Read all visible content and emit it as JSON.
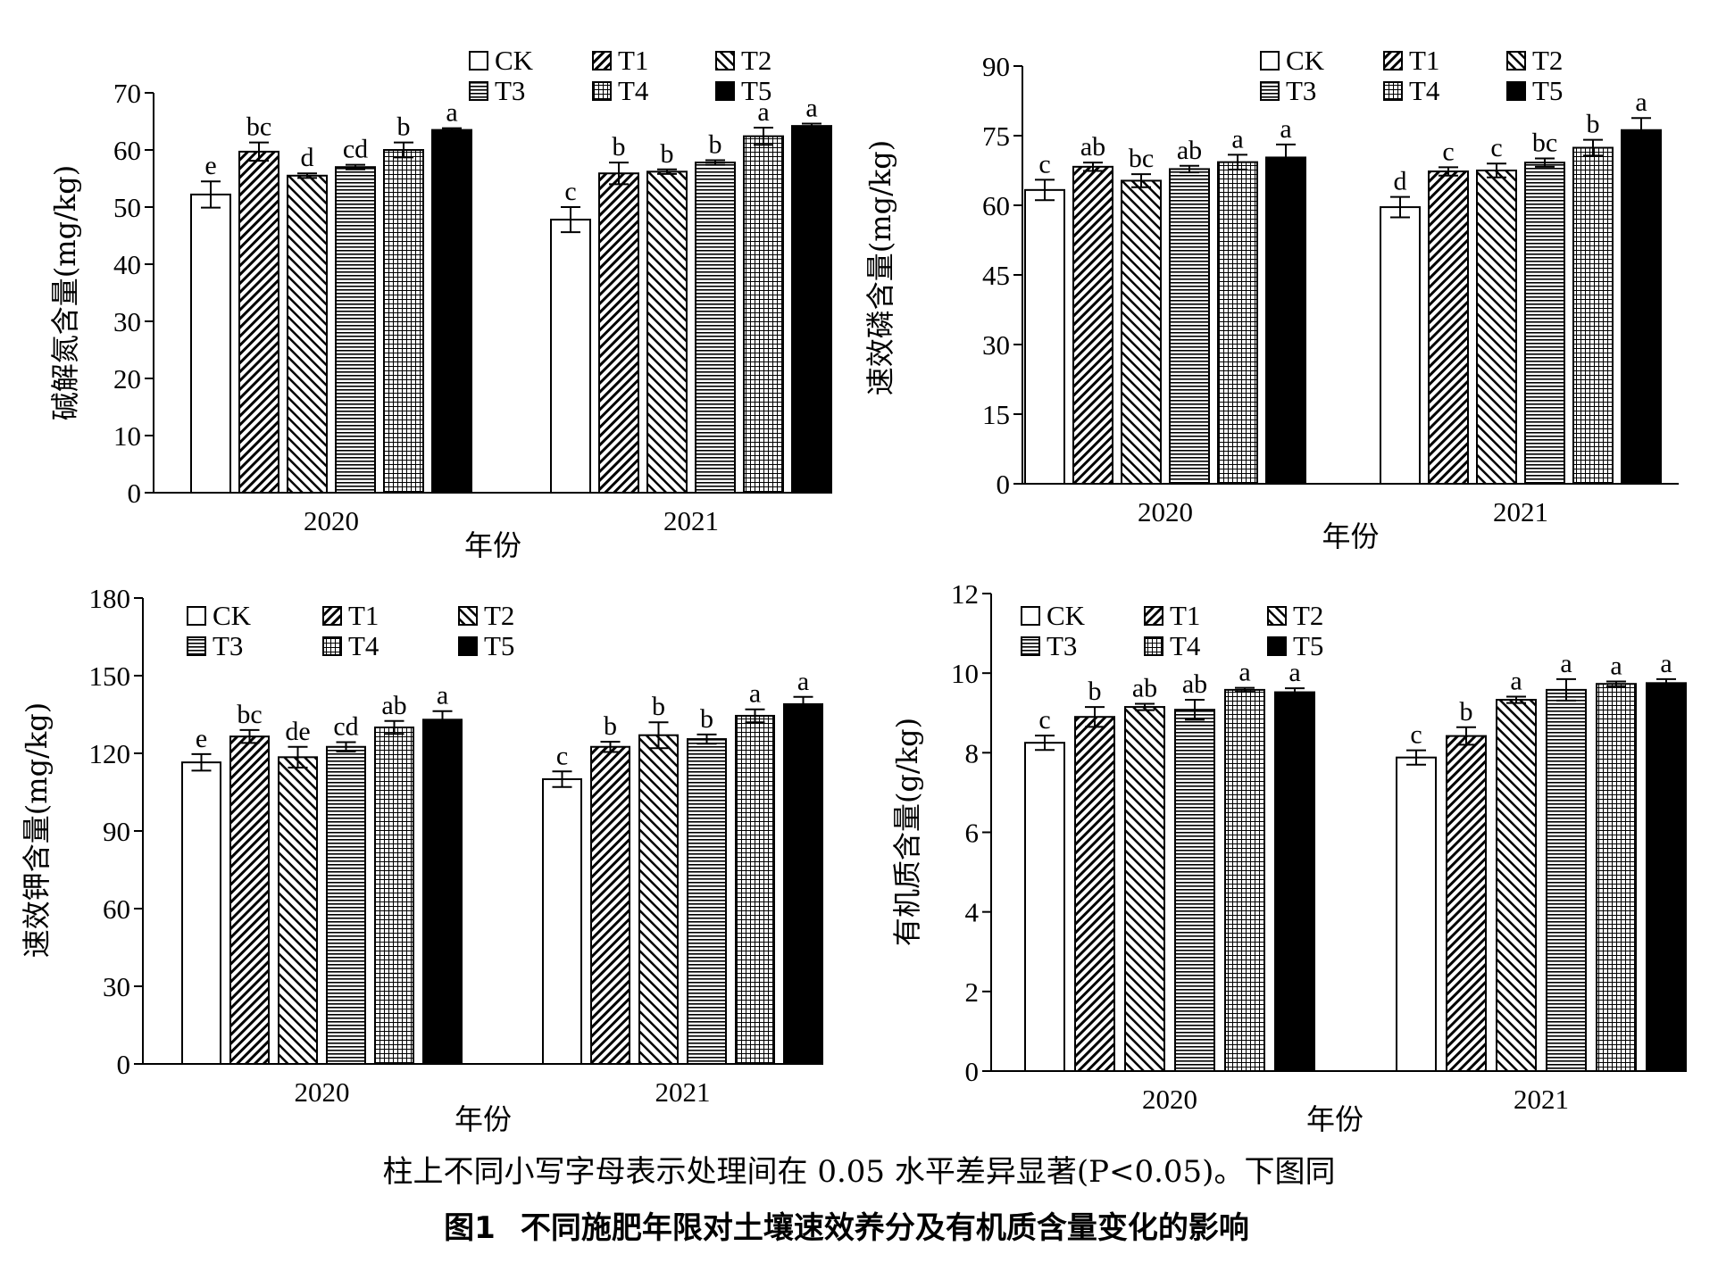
{
  "colors": {
    "ink": "#000000",
    "background": "#ffffff"
  },
  "patterns": {
    "CK": "empty",
    "T1": "backward-diagonal-dense",
    "T2": "forward-diagonal",
    "T3": "horizontal-lines",
    "T4": "grid",
    "T5": "solid"
  },
  "figure": {
    "note": "柱上不同小写字母表示处理间在 0.05 水平差异显著(P<0.05)。下图同",
    "caption_label": "图1",
    "caption_text": "不同施肥年限对土壤速效养分及有机质含量变化的影响"
  },
  "chart_data": [
    {
      "type": "bar",
      "ylabel": "碱解氮含量(mg/kg)",
      "xlabel": "年份",
      "categories": [
        "2020",
        "2021"
      ],
      "ylim": [
        0,
        70
      ],
      "yticks": [
        0,
        10,
        20,
        30,
        40,
        50,
        60,
        70
      ],
      "legend_position": "top-right",
      "series": [
        {
          "name": "CK",
          "values": [
            52.2,
            47.8
          ],
          "errors": [
            2.3,
            2.2
          ],
          "letters": [
            "e",
            "c"
          ]
        },
        {
          "name": "T1",
          "values": [
            59.7,
            55.9
          ],
          "errors": [
            1.6,
            1.9
          ],
          "letters": [
            "bc",
            "b"
          ]
        },
        {
          "name": "T2",
          "values": [
            55.5,
            56.2
          ],
          "errors": [
            0.4,
            0.4
          ],
          "letters": [
            "d",
            "b"
          ]
        },
        {
          "name": "T3",
          "values": [
            57.0,
            57.8
          ],
          "errors": [
            0.4,
            0.4
          ],
          "letters": [
            "cd",
            "b"
          ]
        },
        {
          "name": "T4",
          "values": [
            60.0,
            62.4
          ],
          "errors": [
            1.3,
            1.5
          ],
          "letters": [
            "b",
            "a"
          ]
        },
        {
          "name": "T5",
          "values": [
            63.5,
            64.2
          ],
          "errors": [
            0.3,
            0.4
          ],
          "letters": [
            "a",
            "a"
          ]
        }
      ]
    },
    {
      "type": "bar",
      "ylabel": "速效磷含量(mg/kg)",
      "xlabel": "年份",
      "categories": [
        "2020",
        "2021"
      ],
      "ylim": [
        0,
        90
      ],
      "yticks": [
        0,
        15,
        30,
        45,
        60,
        75,
        90
      ],
      "legend_position": "top-right",
      "series": [
        {
          "name": "CK",
          "values": [
            63.3,
            59.6
          ],
          "errors": [
            2.2,
            2.2
          ],
          "letters": [
            "c",
            "d"
          ]
        },
        {
          "name": "T1",
          "values": [
            68.3,
            67.3
          ],
          "errors": [
            0.9,
            0.9
          ],
          "letters": [
            "ab",
            "c"
          ]
        },
        {
          "name": "T2",
          "values": [
            65.3,
            67.5
          ],
          "errors": [
            1.4,
            1.5
          ],
          "letters": [
            "bc",
            "c"
          ]
        },
        {
          "name": "T3",
          "values": [
            67.8,
            69.2
          ],
          "errors": [
            0.7,
            0.9
          ],
          "letters": [
            "ab",
            "bc"
          ]
        },
        {
          "name": "T4",
          "values": [
            69.3,
            72.4
          ],
          "errors": [
            1.6,
            1.7
          ],
          "letters": [
            "a",
            "b"
          ]
        },
        {
          "name": "T5",
          "values": [
            70.3,
            76.2
          ],
          "errors": [
            2.8,
            2.6
          ],
          "letters": [
            "a",
            "a"
          ]
        }
      ]
    },
    {
      "type": "bar",
      "ylabel": "速效钾含量(mg/kg)",
      "xlabel": "年份",
      "categories": [
        "2020",
        "2021"
      ],
      "ylim": [
        0,
        180
      ],
      "yticks": [
        0,
        30,
        60,
        90,
        120,
        150,
        180
      ],
      "legend_position": "top-right",
      "series": [
        {
          "name": "CK",
          "values": [
            116.5,
            110.0
          ],
          "errors": [
            3.2,
            3.0
          ],
          "letters": [
            "e",
            "c"
          ]
        },
        {
          "name": "T1",
          "values": [
            126.5,
            122.5
          ],
          "errors": [
            2.5,
            2.0
          ],
          "letters": [
            "bc",
            "b"
          ]
        },
        {
          "name": "T2",
          "values": [
            118.5,
            127.0
          ],
          "errors": [
            4.0,
            5.0
          ],
          "letters": [
            "de",
            "b"
          ]
        },
        {
          "name": "T3",
          "values": [
            122.5,
            125.5
          ],
          "errors": [
            1.8,
            1.8
          ],
          "letters": [
            "cd",
            "b"
          ]
        },
        {
          "name": "T4",
          "values": [
            130.0,
            134.5
          ],
          "errors": [
            2.5,
            2.5
          ],
          "letters": [
            "ab",
            "a"
          ]
        },
        {
          "name": "T5",
          "values": [
            133.0,
            139.0
          ],
          "errors": [
            3.3,
            2.8
          ],
          "letters": [
            "a",
            "a"
          ]
        }
      ]
    },
    {
      "type": "bar",
      "ylabel": "有机质含量(g/kg)",
      "xlabel": "年份",
      "categories": [
        "2020",
        "2021"
      ],
      "ylim": [
        0,
        12
      ],
      "yticks": [
        0,
        2,
        4,
        6,
        8,
        10,
        12
      ],
      "legend_position": "top-right",
      "series": [
        {
          "name": "CK",
          "values": [
            8.25,
            7.88
          ],
          "errors": [
            0.18,
            0.18
          ],
          "letters": [
            "c",
            "c"
          ]
        },
        {
          "name": "T1",
          "values": [
            8.9,
            8.42
          ],
          "errors": [
            0.25,
            0.22
          ],
          "letters": [
            "b",
            "b"
          ]
        },
        {
          "name": "T2",
          "values": [
            9.15,
            9.33
          ],
          "errors": [
            0.08,
            0.08
          ],
          "letters": [
            "ab",
            "a"
          ]
        },
        {
          "name": "T3",
          "values": [
            9.08,
            9.58
          ],
          "errors": [
            0.25,
            0.27
          ],
          "letters": [
            "ab",
            "a"
          ]
        },
        {
          "name": "T4",
          "values": [
            9.58,
            9.73
          ],
          "errors": [
            0.05,
            0.06
          ],
          "letters": [
            "a",
            "a"
          ]
        },
        {
          "name": "T5",
          "values": [
            9.52,
            9.75
          ],
          "errors": [
            0.1,
            0.1
          ],
          "letters": [
            "a",
            "a"
          ]
        }
      ]
    }
  ]
}
